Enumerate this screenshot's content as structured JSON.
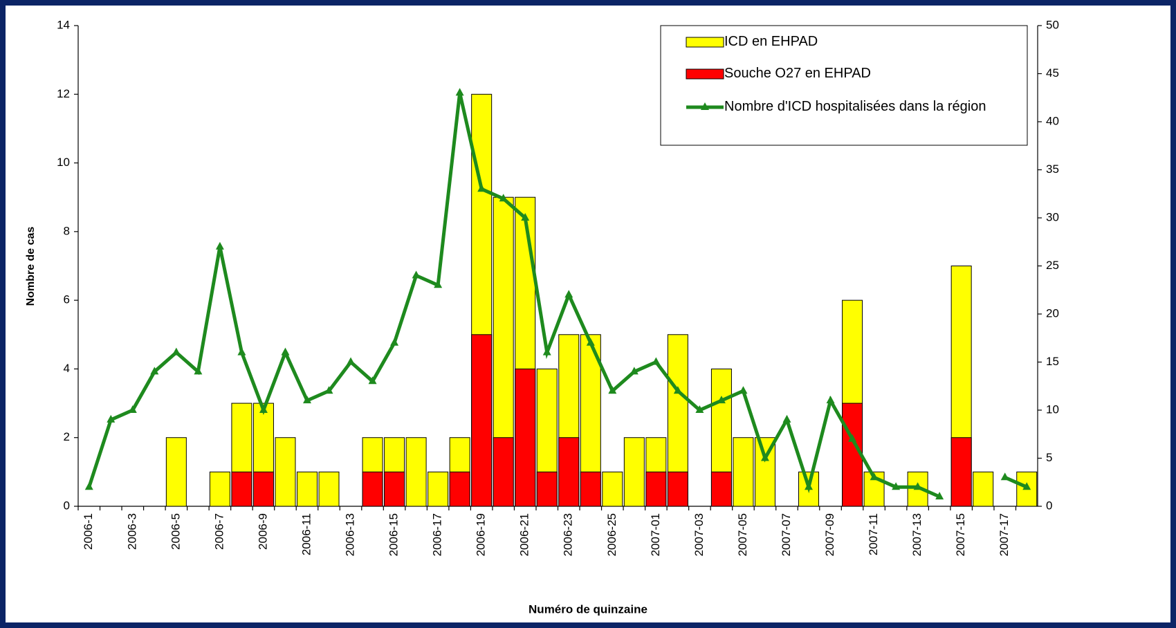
{
  "chart_data": {
    "type": "bar",
    "x_label": "Numéro de quinzaine",
    "y_label": "Nombre de cas",
    "categories": [
      "2006-1",
      null,
      "2006-3",
      null,
      "2006-5",
      null,
      "2006-7",
      null,
      "2006-9",
      null,
      "2006-11",
      null,
      "2006-13",
      null,
      "2006-15",
      null,
      "2006-17",
      null,
      "2006-19",
      null,
      "2006-21",
      null,
      "2006-23",
      null,
      "2006-25",
      null,
      "2007-01",
      null,
      "2007-03",
      null,
      "2007-05",
      null,
      "2007-07",
      null,
      "2007-09",
      null,
      "2007-11",
      null,
      "2007-13",
      null,
      "2007-15",
      null,
      "2007-17",
      null
    ],
    "series": [
      {
        "name": "ICD en EHPAD",
        "type": "bar",
        "color": "#ffff00",
        "values": [
          0,
          0,
          0,
          0,
          2,
          0,
          1,
          3,
          3,
          2,
          1,
          1,
          0,
          2,
          2,
          2,
          1,
          2,
          12,
          9,
          9,
          4,
          5,
          5,
          1,
          2,
          2,
          5,
          0,
          4,
          2,
          2,
          0,
          1,
          0,
          6,
          1,
          0,
          1,
          0,
          7,
          1,
          0,
          1
        ]
      },
      {
        "name": "Souche O27 en EHPAD",
        "type": "bar",
        "color": "#ff0000",
        "values": [
          0,
          0,
          0,
          0,
          0,
          0,
          0,
          1,
          1,
          0,
          0,
          0,
          0,
          1,
          1,
          0,
          0,
          1,
          5,
          2,
          4,
          1,
          2,
          1,
          0,
          0,
          1,
          1,
          0,
          1,
          0,
          0,
          0,
          0,
          0,
          3,
          0,
          0,
          0,
          0,
          2,
          0,
          0,
          0
        ]
      },
      {
        "name": "Nombre d'ICD hospitalisées dans la région",
        "type": "line",
        "axis": "y2",
        "color": "#1e8a1e",
        "values": [
          2,
          9,
          10,
          14,
          16,
          14,
          27,
          16,
          10,
          16,
          11,
          12,
          15,
          13,
          17,
          24,
          23,
          43,
          33,
          32,
          30,
          16,
          22,
          17,
          12,
          14,
          15,
          12,
          10,
          11,
          12,
          5,
          9,
          2,
          11,
          7,
          3,
          2,
          2,
          1,
          null,
          null,
          3,
          2
        ]
      }
    ],
    "ylim": [
      0,
      14
    ],
    "yticks": [
      0,
      2,
      4,
      6,
      8,
      10,
      12,
      14
    ],
    "y2lim": [
      0,
      50
    ],
    "y2ticks": [
      0,
      5,
      10,
      15,
      20,
      25,
      30,
      35,
      40,
      45,
      50
    ],
    "grid": false,
    "legend": "upper right"
  }
}
